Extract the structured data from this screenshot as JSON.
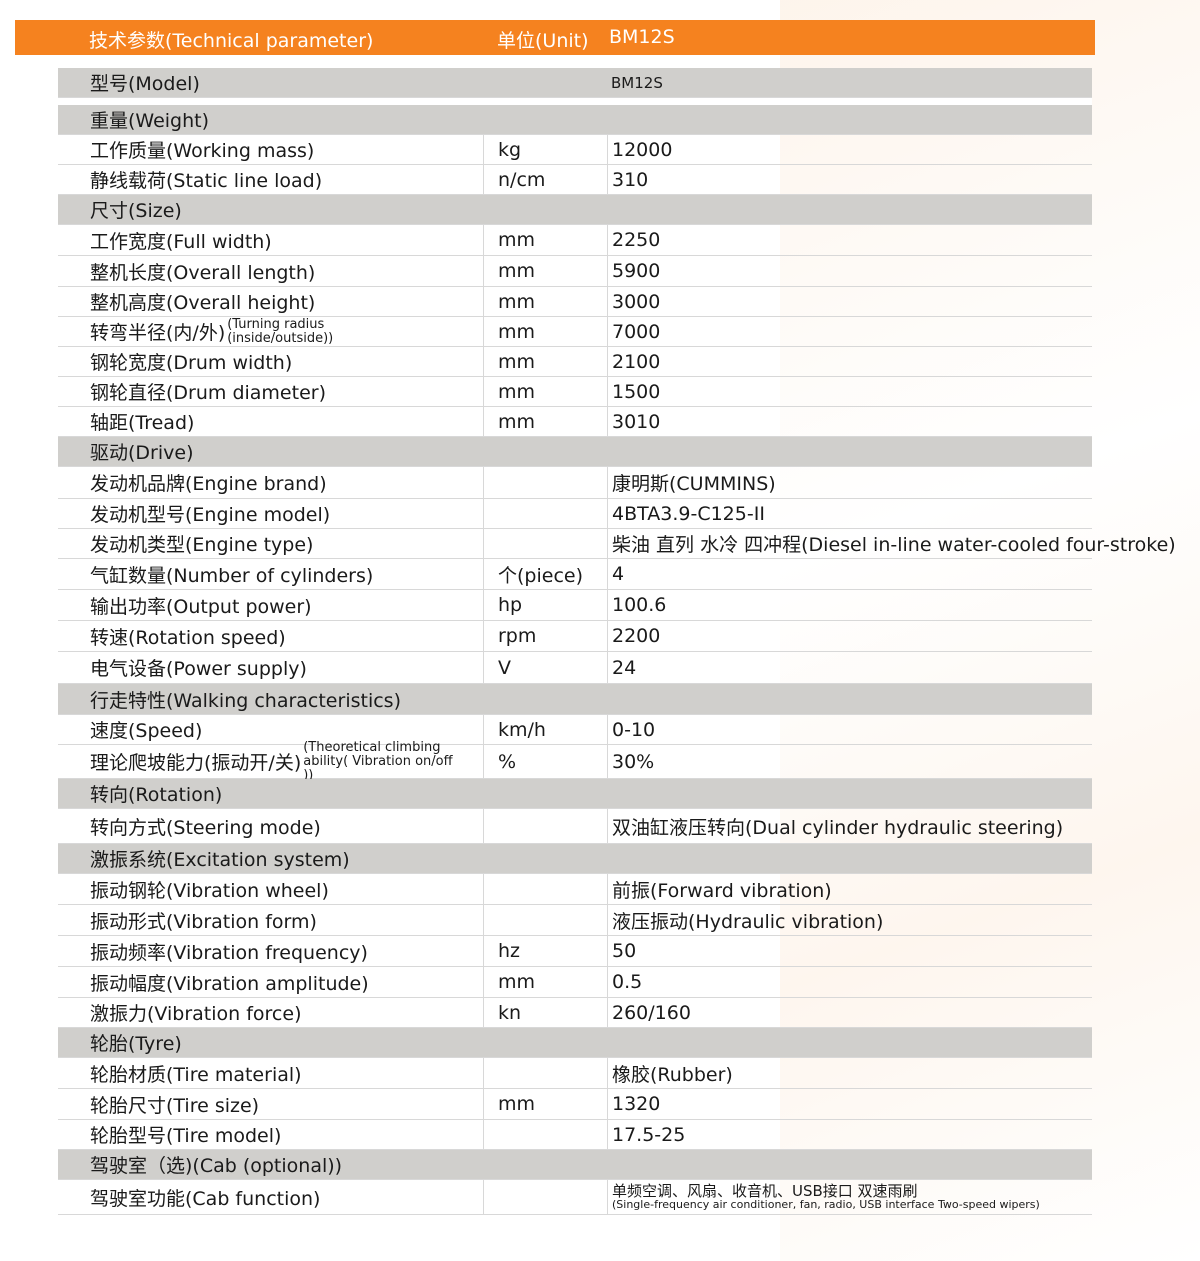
{
  "header": {
    "parameter": "技术参数(Technical parameter)",
    "unit": "单位(Unit)",
    "model": "BM12S"
  },
  "rows": [
    {
      "type": "section",
      "label": "型号(Model)",
      "value": "BM12S"
    },
    {
      "type": "gap"
    },
    {
      "type": "section",
      "label": "重量(Weight)"
    },
    {
      "label": "工作质量(Working mass)",
      "unit": "kg",
      "value": "12000"
    },
    {
      "label": "静线载荷(Static line load)",
      "unit": "n/cm",
      "value": "310"
    },
    {
      "type": "section",
      "label": "尺寸(Size)"
    },
    {
      "label": "工作宽度(Full width)",
      "unit": "mm",
      "value": "2250"
    },
    {
      "label": "整机长度(Overall length)",
      "unit": "mm",
      "value": "5900"
    },
    {
      "label": "整机高度(Overall height)",
      "unit": "mm",
      "value": "3000"
    },
    {
      "label": "转弯半径(内/外)",
      "label_note": "(Turning radius (inside/outside))",
      "unit": "mm",
      "value": "7000"
    },
    {
      "label": "钢轮宽度(Drum width)",
      "unit": "mm",
      "value": "2100"
    },
    {
      "label": "钢轮直径(Drum diameter)",
      "unit": "mm",
      "value": "1500"
    },
    {
      "label": "轴距(Tread)",
      "unit": "mm",
      "value": "3010"
    },
    {
      "type": "section",
      "label": "驱动(Drive)"
    },
    {
      "label": "发动机品牌(Engine brand)",
      "unit": "",
      "value": "康明斯(CUMMINS)"
    },
    {
      "label": "发动机型号(Engine model)",
      "unit": "",
      "value": "4BTA3.9-C125-II"
    },
    {
      "label": "发动机类型(Engine type)",
      "unit": "",
      "value": "柴油 直列 水冷 四冲程(Diesel in-line water-cooled four-stroke)"
    },
    {
      "label": "气缸数量(Number of cylinders)",
      "unit": "个(piece)",
      "value": "4"
    },
    {
      "label": "输出功率(Output power)",
      "unit": "hp",
      "value": "100.6"
    },
    {
      "label": "转速(Rotation speed)",
      "unit": "rpm",
      "value": "2200"
    },
    {
      "label": "电气设备(Power supply)",
      "unit": "V",
      "value": "24"
    },
    {
      "type": "section",
      "label": "行走特性(Walking characteristics)"
    },
    {
      "label": "速度(Speed)",
      "unit": "km/h",
      "value": "0-10"
    },
    {
      "label": "理论爬坡能力(振动开/关)",
      "label_note": "(Theoretical climbing ability( Vibration on/off ))",
      "unit": "%",
      "value": "30%"
    },
    {
      "type": "section",
      "label": "转向(Rotation)"
    },
    {
      "label": "转向方式(Steering mode)",
      "unit": "",
      "value": "双油缸液压转向(Dual cylinder hydraulic steering)"
    },
    {
      "type": "section",
      "label": "激振系统(Excitation system)"
    },
    {
      "label": "振动钢轮(Vibration wheel)",
      "unit": "",
      "value": "前振(Forward vibration)"
    },
    {
      "label": "振动形式(Vibration form)",
      "unit": "",
      "value": "液压振动(Hydraulic vibration)"
    },
    {
      "label": "振动频率(Vibration frequency)",
      "unit": "hz",
      "value": "50"
    },
    {
      "label": "振动幅度(Vibration amplitude)",
      "unit": "mm",
      "value": "0.5"
    },
    {
      "label": "激振力(Vibration force)",
      "unit": "kn",
      "value": "260/160"
    },
    {
      "type": "section",
      "label": "轮胎(Tyre)"
    },
    {
      "label": "轮胎材质(Tire material)",
      "unit": "",
      "value": "橡胶(Rubber)"
    },
    {
      "label": "轮胎尺寸(Tire size)",
      "unit": "mm",
      "value": "1320"
    },
    {
      "label": "轮胎型号(Tire model)",
      "unit": "",
      "value": "17.5-25"
    },
    {
      "type": "section",
      "label": "驾驶室（选)(Cab (optional))"
    },
    {
      "label": "驾驶室功能(Cab function)",
      "unit": "",
      "value": "单频空调、风扇、收音机、USB接口 双速雨刷",
      "value_note": "(Single-frequency air conditioner, fan, radio, USB interface Two-speed wipers)"
    }
  ]
}
